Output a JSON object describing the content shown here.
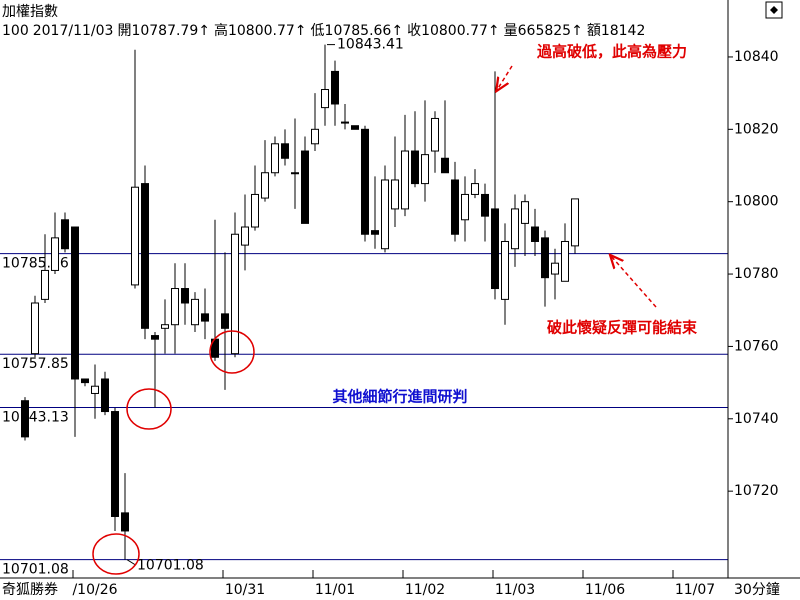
{
  "header": {
    "title": "加權指數",
    "code": "100",
    "date": "2017/11/03",
    "separator": "↑",
    "quote": [
      {
        "label": "開",
        "value": 10787.79
      },
      {
        "label": "高",
        "value": 10800.77
      },
      {
        "label": "低",
        "value": 10785.66
      },
      {
        "label": "收",
        "value": 10800.77
      },
      {
        "label": "量",
        "value": 665825
      },
      {
        "label": "額",
        "value": 18142
      }
    ]
  },
  "chart_data": {
    "type": "candlestick",
    "brand": "奇狐勝券",
    "period": "30分鐘",
    "categories": [
      null,
      null,
      null,
      null,
      null,
      null,
      null,
      null,
      null,
      "/10/26",
      null,
      null,
      null,
      null,
      null,
      null,
      null,
      null,
      null,
      null,
      null,
      null,
      null,
      null,
      "10/31",
      null,
      null,
      null,
      null,
      null,
      null,
      null,
      null,
      "11/01",
      null,
      null,
      null,
      null,
      null,
      null,
      null,
      null,
      "11/02",
      null,
      null,
      null,
      null,
      null,
      null,
      null,
      null,
      "11/03",
      null,
      null,
      null,
      null,
      null,
      null,
      null,
      null,
      "11/06",
      null,
      null,
      null,
      null,
      null,
      null,
      null,
      null,
      "11/07",
      null,
      null,
      null
    ],
    "open": [
      null,
      null,
      10745,
      10758,
      10773,
      10781,
      10795,
      10793,
      10751,
      10747,
      10751,
      10742,
      10714,
      10777,
      10805,
      10763,
      10765,
      10766,
      10776,
      10766,
      10769,
      10762,
      10769,
      10758,
      10788,
      10793,
      10801,
      10808,
      10816,
      10808,
      10814,
      10816,
      10826,
      10836,
      10822,
      10821,
      10820,
      10792,
      10787,
      10798,
      10798,
      10814,
      10805,
      10814,
      10812,
      10806,
      10795,
      10802,
      10802,
      10798,
      10773,
      10787,
      10794,
      10793,
      10790,
      10780,
      10778,
      10787.79,
      null,
      null,
      null,
      null,
      null,
      null,
      null,
      null,
      null,
      null,
      null,
      null,
      null,
      null,
      null
    ],
    "high": [
      null,
      null,
      10746,
      10774,
      10791,
      10797,
      10797,
      10793,
      10751,
      10755,
      10753,
      10743,
      10725,
      10842,
      10810,
      10764,
      10773,
      10783,
      10783,
      10775,
      10776,
      10795,
      10786,
      10797,
      10802,
      10810,
      10817,
      10818,
      10820,
      10823,
      10818,
      10830,
      10843.41,
      10839,
      10827,
      10821,
      10821,
      10807,
      10810,
      10818,
      10824,
      10825,
      10828,
      10825,
      10828,
      10811,
      10807,
      10809,
      10805,
      10836,
      10794,
      10802,
      10802,
      10798,
      10792,
      10787,
      10794,
      10800.77,
      null,
      null,
      null,
      null,
      null,
      null,
      null,
      null,
      null,
      null,
      null,
      null,
      null,
      null,
      null
    ],
    "low": [
      null,
      null,
      10734,
      10757,
      10772,
      10780,
      10786,
      10735,
      10749,
      10740,
      10741,
      10709,
      10701.08,
      10776,
      10762,
      10743.13,
      10758,
      10758,
      10766,
      10764,
      10762,
      10756,
      10748,
      10757,
      10781,
      10792,
      10800,
      10807,
      10810,
      10798,
      10794,
      10814,
      10821,
      10821,
      10820,
      10820,
      10789,
      10787,
      10786,
      10793,
      10796,
      10804,
      10800,
      10808,
      10808,
      10789,
      10789,
      10801,
      10789,
      10773,
      10766,
      10782,
      10785,
      10785,
      10771,
      10773,
      10778,
      10785.66,
      null,
      null,
      null,
      null,
      null,
      null,
      null,
      null,
      null,
      null,
      null,
      null,
      null,
      null,
      null
    ],
    "close": [
      null,
      null,
      10735,
      10772,
      10781,
      10790,
      10787,
      10751,
      10750,
      10749,
      10742,
      10713,
      10709,
      10804,
      10765,
      10762,
      10766,
      10776,
      10772,
      10773,
      10767,
      10757,
      10765,
      10791,
      10793,
      10802,
      10808,
      10816,
      10812,
      10808,
      10794,
      10820,
      10831,
      10827,
      10822,
      10820,
      10791,
      10791,
      10806,
      10806,
      10814,
      10805,
      10813,
      10823,
      10808,
      10791,
      10802,
      10805,
      10796,
      10776,
      10789,
      10798,
      10800,
      10789,
      10779,
      10783,
      10789,
      10800.77,
      null,
      null,
      null,
      null,
      null,
      null,
      null,
      null,
      null,
      null,
      null,
      null,
      null,
      null,
      null
    ],
    "up_color": "#ffffff",
    "down_color": "#000000",
    "line_color": "#000000",
    "ylim": [
      10696,
      10848
    ],
    "yticks": [
      10720,
      10740,
      10760,
      10780,
      10800,
      10820,
      10840
    ],
    "hlines": [
      10785.66,
      10757.85,
      10743.13,
      10701.08
    ],
    "hline_color": "#000080",
    "annotations": [
      "過高破低，此高為壓力",
      "破此懷疑反彈可能結束",
      "其他細節行進間研判"
    ]
  }
}
